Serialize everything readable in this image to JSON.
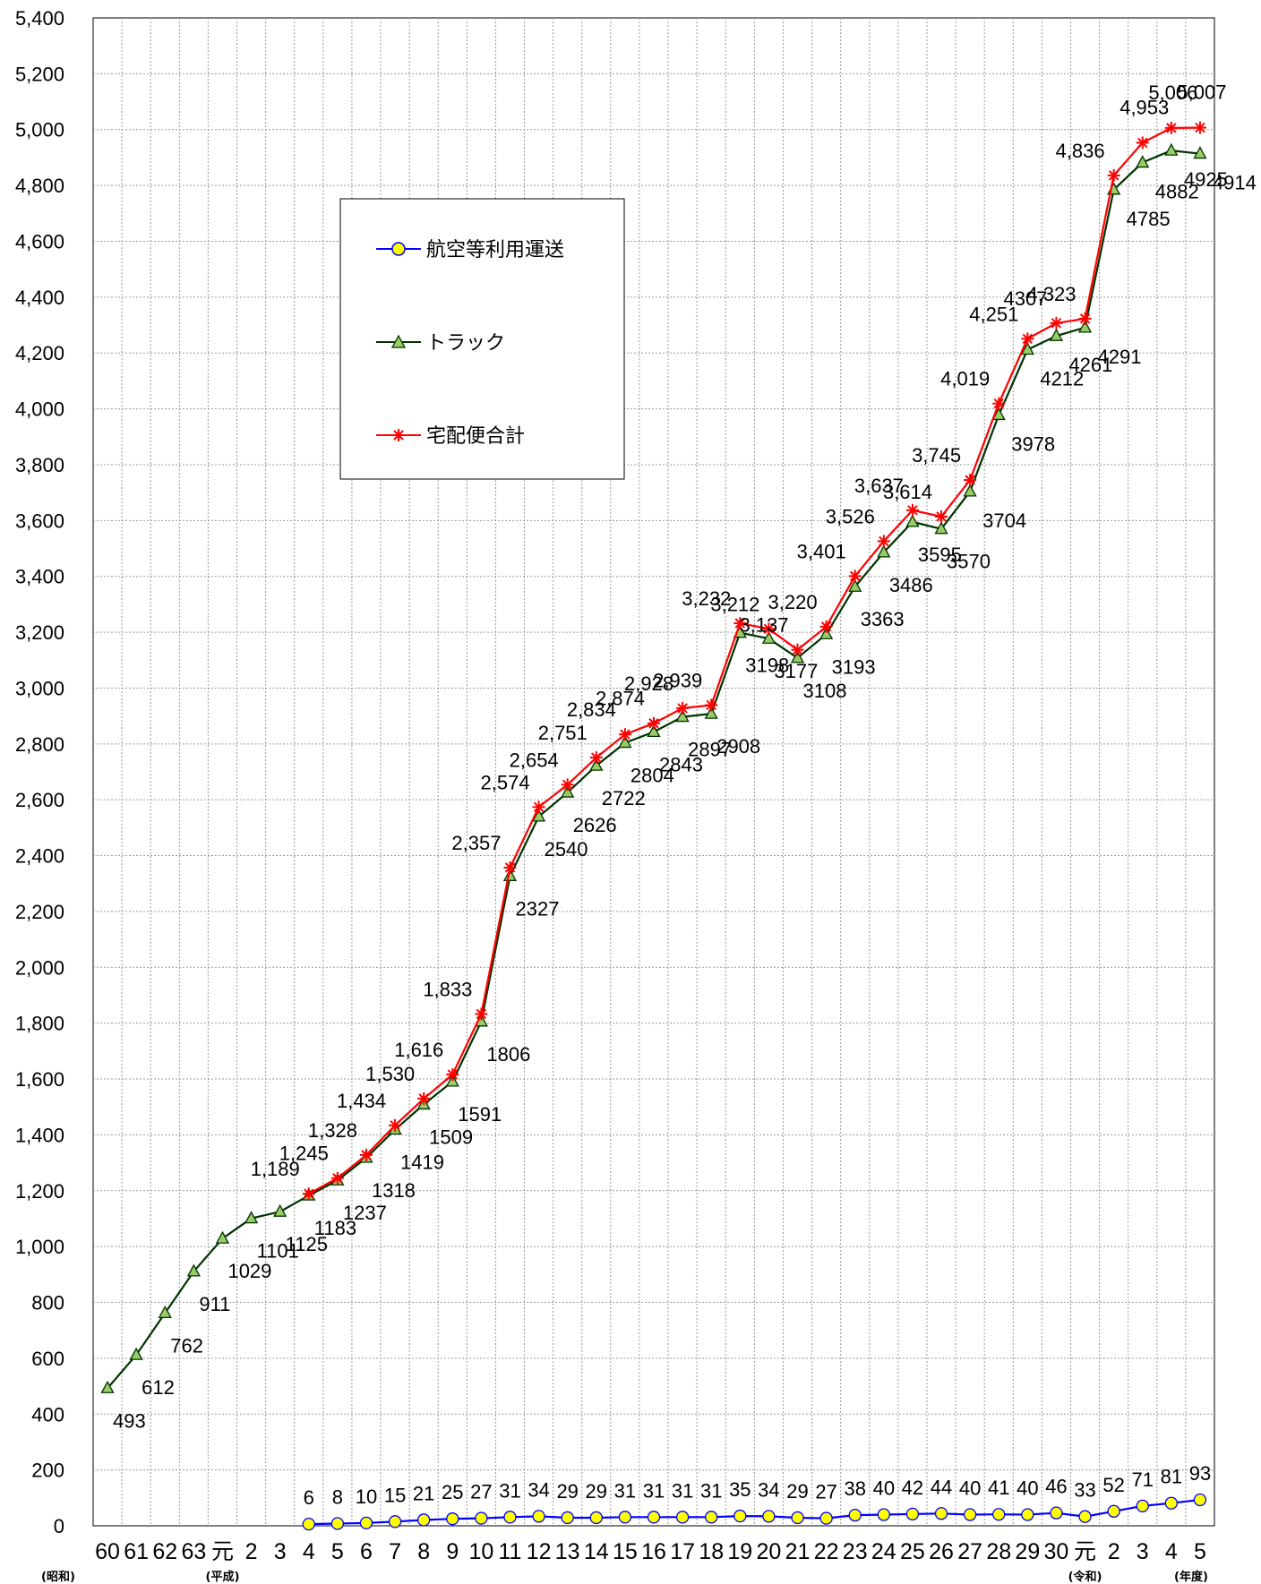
{
  "chart_data": {
    "type": "line",
    "categories": [
      "60",
      "61",
      "62",
      "63",
      "元",
      "2",
      "3",
      "4",
      "5",
      "6",
      "7",
      "8",
      "9",
      "10",
      "11",
      "12",
      "13",
      "14",
      "15",
      "16",
      "17",
      "18",
      "19",
      "20",
      "21",
      "22",
      "23",
      "24",
      "25",
      "26",
      "27",
      "28",
      "29",
      "30",
      "元",
      "2",
      "3",
      "4",
      "5"
    ],
    "era_notes": [
      "(昭和)",
      "(平成)",
      "(令和)",
      "(年度)"
    ],
    "ylim": [
      0,
      5400
    ],
    "ytick_step": 200,
    "ytick_labels": [
      "0",
      "200",
      "400",
      "600",
      "800",
      "1,000",
      "1,200",
      "1,400",
      "1,600",
      "1,800",
      "2,000",
      "2,200",
      "2,400",
      "2,600",
      "2,800",
      "3,000",
      "3,200",
      "3,400",
      "3,600",
      "3,800",
      "4,000",
      "4,200",
      "4,400",
      "4,600",
      "4,800",
      "5,000",
      "5,200",
      "5,400"
    ],
    "grid": true,
    "legend_position": "upper-left",
    "series": [
      {
        "name": "航空等利用運送",
        "color": "#0000ff",
        "marker": "circle",
        "marker_fill": "#ffff00",
        "values": [
          null,
          null,
          null,
          null,
          null,
          null,
          null,
          6,
          8,
          10,
          15,
          21,
          25,
          27,
          31,
          34,
          29,
          29,
          31,
          31,
          31,
          31,
          35,
          34,
          29,
          27,
          38,
          40,
          42,
          44,
          40,
          41,
          40,
          46,
          33,
          52,
          71,
          81,
          93
        ],
        "labels": [
          null,
          null,
          null,
          null,
          null,
          null,
          null,
          "6",
          "8",
          "10",
          "15",
          "21",
          "25",
          "27",
          "31",
          "34",
          "29",
          "29",
          "31",
          "31",
          "31",
          "31",
          "35",
          "34",
          "29",
          "27",
          "38",
          "40",
          "42",
          "44",
          "40",
          "41",
          "40",
          "46",
          "33",
          "52",
          "71",
          "81",
          "93"
        ]
      },
      {
        "name": "トラック",
        "color": "#003300",
        "marker": "triangle",
        "marker_fill": "#99cc66",
        "values": [
          493,
          612,
          762,
          911,
          1029,
          1101,
          1125,
          1183,
          1237,
          1318,
          1419,
          1509,
          1591,
          1806,
          2327,
          2540,
          2626,
          2722,
          2804,
          2843,
          2897,
          2908,
          3198,
          3177,
          3108,
          3193,
          3363,
          3486,
          3595,
          3570,
          3704,
          3978,
          4212,
          4261,
          4291,
          4785,
          4882,
          4925,
          4914
        ],
        "labels": [
          "493",
          "612",
          "762",
          "911",
          "1029",
          "1101",
          "1125",
          "1183",
          "1237",
          "1318",
          "1419",
          "1509",
          "1591",
          "1806",
          "2327",
          "2540",
          "2626",
          "2722",
          "2804",
          "2843",
          "2897",
          "2908",
          "3198",
          "3177",
          "3108",
          "3193",
          "3363",
          "3486",
          "3595",
          "3570",
          "3704",
          "3978",
          "4212",
          "4261",
          "4291",
          "4785",
          "4882",
          "4925",
          "4914"
        ]
      },
      {
        "name": "宅配便合計",
        "color": "#ff0000",
        "marker": "star",
        "values": [
          null,
          null,
          null,
          null,
          null,
          null,
          null,
          1189,
          1245,
          1328,
          1434,
          1530,
          1616,
          1833,
          2357,
          2574,
          2654,
          2751,
          2834,
          2874,
          2928,
          2939,
          3232,
          3212,
          3137,
          3220,
          3401,
          3526,
          3637,
          3614,
          3745,
          4019,
          4251,
          4307,
          4323,
          4836,
          4953,
          5006,
          5007
        ],
        "labels": [
          null,
          null,
          null,
          null,
          null,
          null,
          null,
          "1,189",
          "1,245",
          "1,328",
          "1,434",
          "1,530",
          "1,616",
          "1,833",
          "2,357",
          "2,574",
          "2,654",
          "2,751",
          "2,834",
          "2,874",
          "2,928",
          "2,939",
          "3,232",
          "3,212",
          "3,137",
          "3,220",
          "3,401",
          "3,526",
          "3,637",
          "3,614",
          "3,745",
          "4,019",
          "4,251",
          "4307",
          "4,323",
          "4,836",
          "4,953",
          "5,006",
          "5,007"
        ]
      }
    ]
  }
}
